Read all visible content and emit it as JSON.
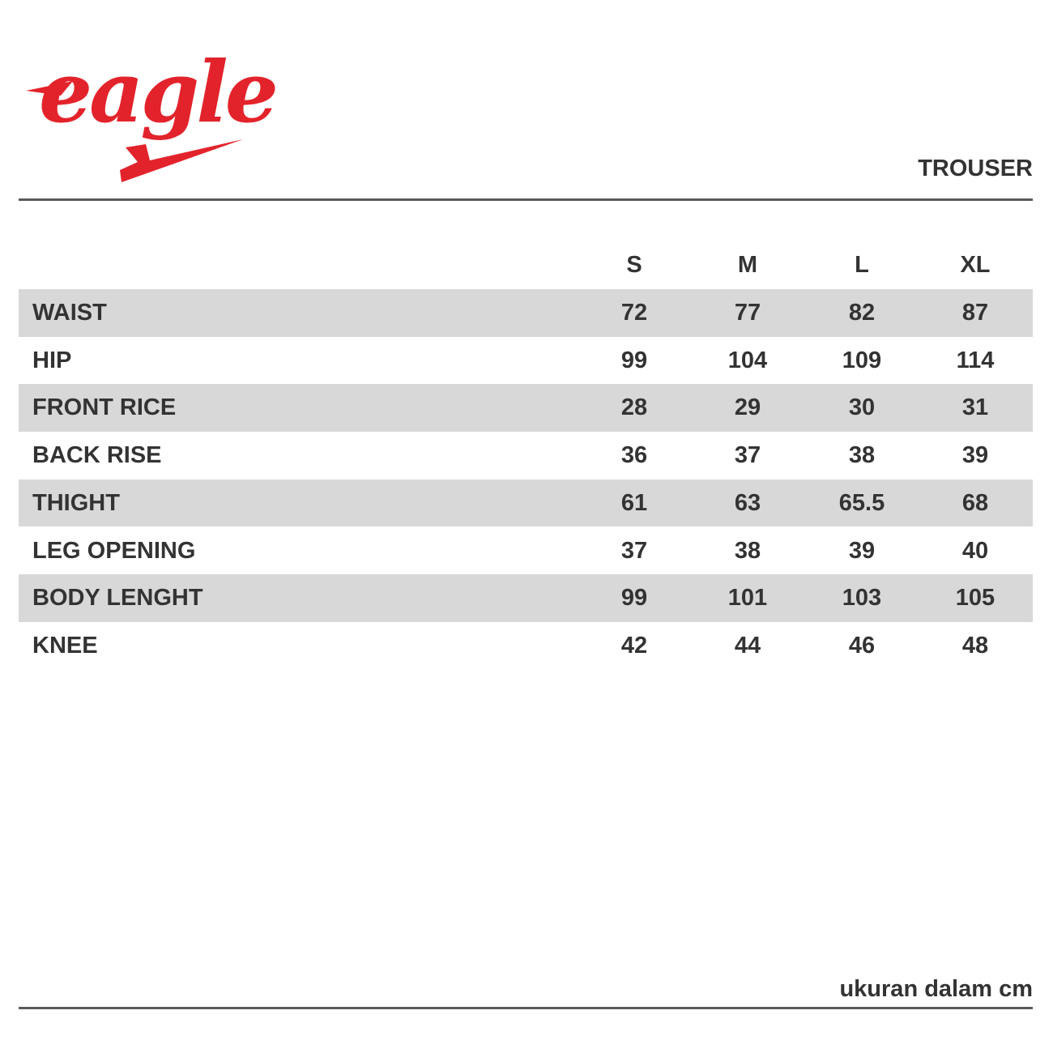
{
  "header": {
    "logo": "eagle",
    "title": "TROUSER"
  },
  "table": {
    "columns": [
      "S",
      "M",
      "L",
      "XL"
    ],
    "rows": [
      {
        "label": "WAIST",
        "values": [
          72,
          77,
          82,
          87
        ]
      },
      {
        "label": "HIP",
        "values": [
          99,
          104,
          109,
          114
        ]
      },
      {
        "label": "FRONT RICE",
        "values": [
          28,
          29,
          30,
          31
        ]
      },
      {
        "label": "BACK RISE",
        "values": [
          36,
          37,
          38,
          39
        ]
      },
      {
        "label": "THIGHT",
        "values": [
          61,
          63,
          65.5,
          68
        ]
      },
      {
        "label": "LEG OPENING",
        "values": [
          37,
          38,
          39,
          40
        ]
      },
      {
        "label": "BODY LENGHT",
        "values": [
          99,
          101,
          103,
          105
        ]
      },
      {
        "label": "KNEE",
        "values": [
          42,
          44,
          46,
          48
        ]
      }
    ]
  },
  "footer": {
    "note": "ukuran dalam cm"
  }
}
